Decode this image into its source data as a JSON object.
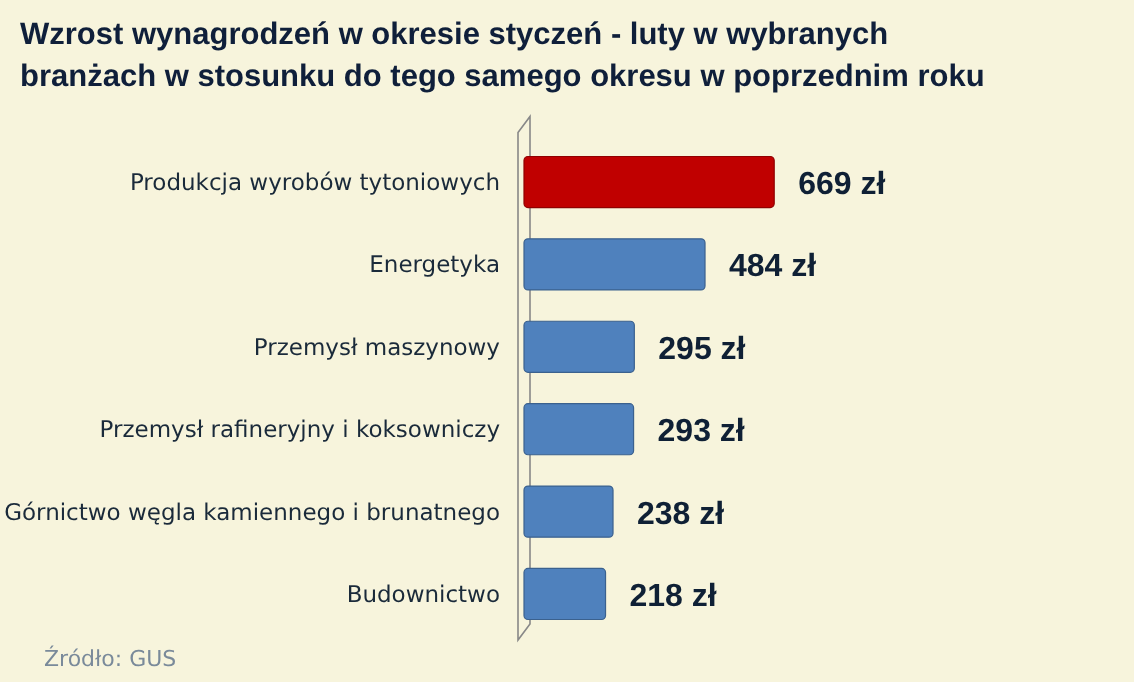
{
  "chart_data": {
    "type": "bar",
    "orientation": "horizontal",
    "title": "Wzrost wynagrodzeń w okresie styczeń - luty w wybranych branżach w stosunku do tego samego okresu w poprzednim roku",
    "categories": [
      "Produkcja wyrobów tytoniowych",
      "Energetyka",
      "Przemysł maszynowy",
      "Przemysł rafineryjny i koksowniczy",
      "Górnictwo węgla kamiennego i brunatnego",
      "Budownictwo"
    ],
    "values": [
      669,
      484,
      295,
      293,
      238,
      218
    ],
    "value_labels": [
      "669 zł",
      "484 zł",
      "295 zł",
      "293 zł",
      "238 zł",
      "218 zł"
    ],
    "colors": [
      "#c00000",
      "#4f81bd",
      "#4f81bd",
      "#4f81bd",
      "#4f81bd",
      "#4f81bd"
    ],
    "annotations": [
      "Źródło: GUS"
    ]
  }
}
